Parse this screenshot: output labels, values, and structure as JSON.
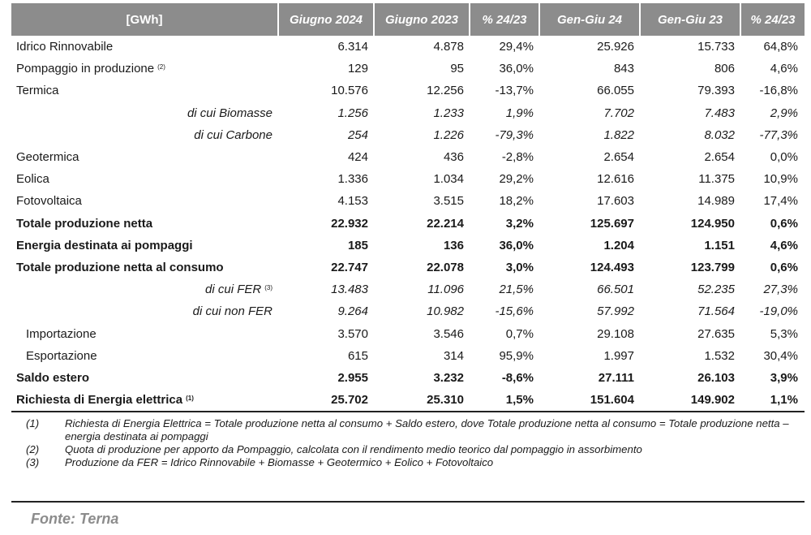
{
  "headers": [
    "[GWh]",
    "Giugno 2024",
    "Giugno 2023",
    "% 24/23",
    "Gen-Giu 24",
    "Gen-Giu 23",
    "% 24/23"
  ],
  "rows": [
    {
      "label": "Idrico Rinnovabile",
      "note": "",
      "values": [
        "6.314",
        "4.878",
        "29,4%",
        "25.926",
        "15.733",
        "64,8%"
      ]
    },
    {
      "label": "Pompaggio in produzione",
      "note": "(2)",
      "values": [
        "129",
        "95",
        "36,0%",
        "843",
        "806",
        "4,6%"
      ]
    },
    {
      "label": "Termica",
      "note": "",
      "values": [
        "10.576",
        "12.256",
        "-13,7%",
        "66.055",
        "79.393",
        "-16,8%"
      ]
    },
    {
      "label": "di cui Biomasse",
      "note": "",
      "values": [
        "1.256",
        "1.233",
        "1,9%",
        "7.702",
        "7.483",
        "2,9%"
      ]
    },
    {
      "label": "di cui Carbone",
      "note": "",
      "values": [
        "254",
        "1.226",
        "-79,3%",
        "1.822",
        "8.032",
        "-77,3%"
      ]
    },
    {
      "label": "Geotermica",
      "note": "",
      "values": [
        "424",
        "436",
        "-2,8%",
        "2.654",
        "2.654",
        "0,0%"
      ]
    },
    {
      "label": "Eolica",
      "note": "",
      "values": [
        "1.336",
        "1.034",
        "29,2%",
        "12.616",
        "11.375",
        "10,9%"
      ]
    },
    {
      "label": "Fotovoltaica",
      "note": "",
      "values": [
        "4.153",
        "3.515",
        "18,2%",
        "17.603",
        "14.989",
        "17,4%"
      ]
    },
    {
      "label": "Totale produzione netta",
      "note": "",
      "values": [
        "22.932",
        "22.214",
        "3,2%",
        "125.697",
        "124.950",
        "0,6%"
      ]
    },
    {
      "label": "Energia destinata ai pompaggi",
      "note": "",
      "values": [
        "185",
        "136",
        "36,0%",
        "1.204",
        "1.151",
        "4,6%"
      ]
    },
    {
      "label": "Totale produzione netta al consumo",
      "note": "",
      "values": [
        "22.747",
        "22.078",
        "3,0%",
        "124.493",
        "123.799",
        "0,6%"
      ]
    },
    {
      "label": "di cui FER",
      "note": "(3)",
      "values": [
        "13.483",
        "11.096",
        "21,5%",
        "66.501",
        "52.235",
        "27,3%"
      ]
    },
    {
      "label": "di cui non FER",
      "note": "",
      "values": [
        "9.264",
        "10.982",
        "-15,6%",
        "57.992",
        "71.564",
        "-19,0%"
      ]
    },
    {
      "label": "Importazione",
      "note": "",
      "values": [
        "3.570",
        "3.546",
        "0,7%",
        "29.108",
        "27.635",
        "5,3%"
      ]
    },
    {
      "label": "Esportazione",
      "note": "",
      "values": [
        "615",
        "314",
        "95,9%",
        "1.997",
        "1.532",
        "30,4%"
      ]
    },
    {
      "label": "Saldo estero",
      "note": "",
      "values": [
        "2.955",
        "3.232",
        "-8,6%",
        "27.111",
        "26.103",
        "3,9%"
      ]
    },
    {
      "label": "Richiesta di Energia elettrica",
      "note": "(1)",
      "values": [
        "25.702",
        "25.310",
        "1,5%",
        "151.604",
        "149.902",
        "1,1%"
      ]
    }
  ],
  "notes": [
    {
      "n": "(1)",
      "text": "Richiesta di Energia Elettrica = Totale produzione netta al consumo + Saldo estero, dove Totale produzione netta al consumo = Totale produzione netta – energia destinata ai pompaggi"
    },
    {
      "n": "(2)",
      "text": "Quota di produzione per apporto da Pompaggio, calcolata con il rendimento medio teorico dal pompaggio in assorbimento"
    },
    {
      "n": "(3)",
      "text": "Produzione da FER = Idrico Rinnovabile + Biomasse + Geotermico + Eolico + Fotovoltaico"
    }
  ],
  "source": "Fonte: Terna"
}
